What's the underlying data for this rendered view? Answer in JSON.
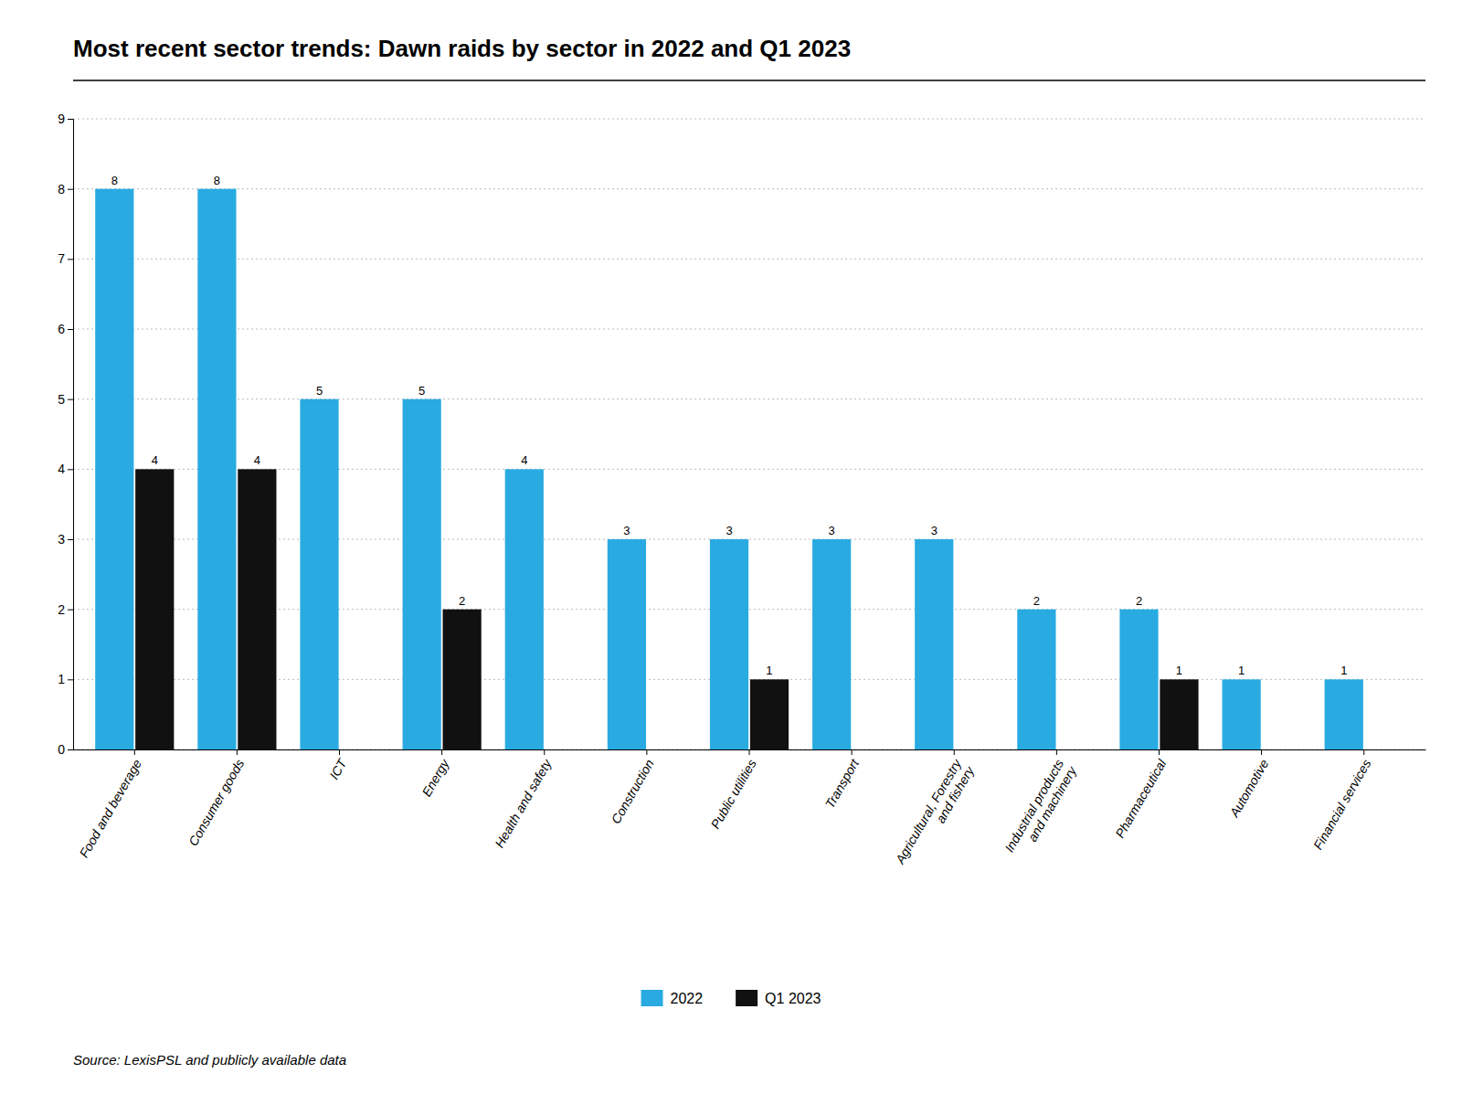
{
  "chart_data": {
    "type": "bar",
    "title": "Most recent sector trends: Dawn raids by sector in 2022 and Q1 2023",
    "categories": [
      "Food and beverage",
      "Consumer goods",
      "ICT",
      "Energy",
      "Health and safety",
      "Construction",
      "Public utilities",
      "Transport",
      "Agricultural, Forestry\nand fishery",
      "Industrial products\nand machinery",
      "Pharmaceutical",
      "Automotive",
      "Financial services"
    ],
    "series": [
      {
        "name": "2022",
        "color": "#29abe2",
        "values": [
          8,
          8,
          5,
          5,
          4,
          3,
          3,
          3,
          3,
          2,
          2,
          1,
          1
        ]
      },
      {
        "name": "Q1 2023",
        "color": "#111111",
        "values": [
          4,
          4,
          0,
          2,
          0,
          0,
          1,
          0,
          0,
          0,
          1,
          0,
          0
        ]
      }
    ],
    "ylim": [
      0,
      9
    ],
    "yticks": [
      0,
      1,
      2,
      3,
      4,
      5,
      6,
      7,
      8,
      9
    ],
    "grid": true,
    "legend": "bottom",
    "data_labels": true,
    "source": "Source: LexisPSL and publicly available data"
  }
}
